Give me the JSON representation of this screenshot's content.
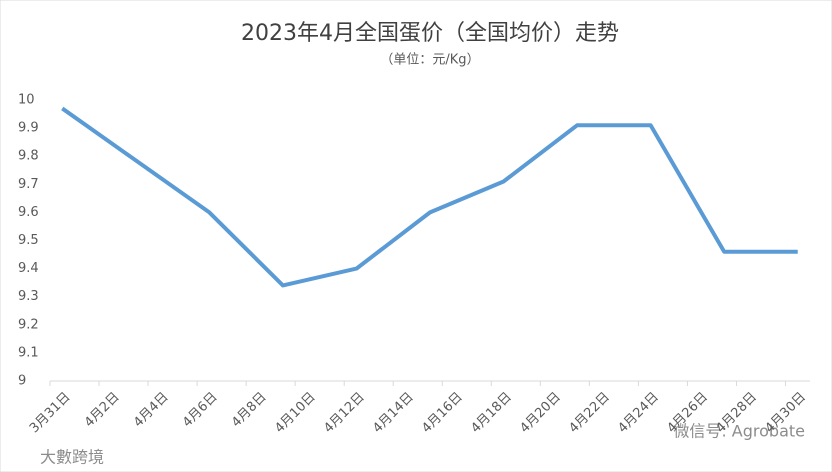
{
  "chart_data": {
    "type": "line",
    "title": "2023年4月全国蛋价（全国均价）走势",
    "subtitle": "（单位：元/Kg）",
    "categories": [
      "3月31日",
      null,
      "4月2日",
      null,
      "4月4日",
      null,
      "4月6日",
      null,
      "4月8日",
      null,
      "4月10日",
      null,
      "4月12日",
      null,
      "4月14日",
      null,
      "4月16日",
      null,
      "4月18日",
      null,
      "4月20日",
      null,
      "4月22日",
      null,
      "4月24日",
      null,
      "4月26日",
      null,
      "4月28日",
      null,
      "4月30日"
    ],
    "series": [
      {
        "name": "全国均价",
        "color": "#5b9bd5",
        "x": [
          0,
          6,
          9,
          12,
          15,
          18,
          21,
          24,
          27,
          30
        ],
        "values": [
          9.97,
          9.6,
          9.34,
          9.4,
          9.6,
          9.71,
          9.91,
          9.91,
          9.46,
          9.46
        ]
      }
    ],
    "ylim": [
      9,
      10
    ],
    "yticks": [
      {
        "value": 9,
        "label": "9"
      },
      9.1,
      9.2,
      9.3,
      9.4,
      9.5,
      9.6,
      9.7,
      9.8,
      9.9,
      {
        "value": 10,
        "label": "10"
      }
    ],
    "grid": false,
    "watermarks": [
      "微信号: Agrobate",
      "大數跨境"
    ]
  }
}
